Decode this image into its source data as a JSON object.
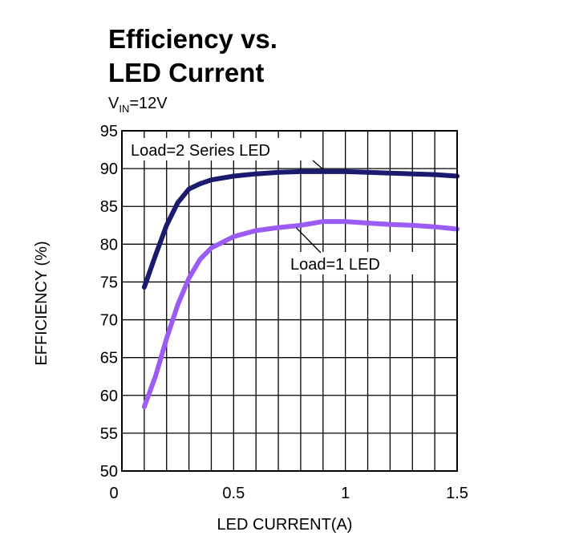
{
  "chart_data": {
    "type": "line",
    "title_line1": "Efficiency vs.",
    "title_line2": "LED Current",
    "condition": {
      "prefix": "V",
      "subscript": "IN",
      "suffix": "=12V"
    },
    "xlabel": "LED CURRENT(A)",
    "ylabel": "EFFICIENCY (%)",
    "xlim": [
      0,
      1.5
    ],
    "ylim": [
      50,
      95
    ],
    "xticks": [
      0,
      0.5,
      1,
      1.5
    ],
    "xtick_labels": [
      "0",
      "0.5",
      "1",
      "1.5"
    ],
    "yticks": [
      50,
      55,
      60,
      65,
      70,
      75,
      80,
      85,
      90,
      95
    ],
    "x_grid_step": 0.1,
    "grid": true,
    "series": [
      {
        "name": "Load=2 Series LED",
        "color": "#1a1a6e",
        "x": [
          0.1,
          0.15,
          0.2,
          0.25,
          0.3,
          0.35,
          0.4,
          0.5,
          0.6,
          0.7,
          0.8,
          0.9,
          1.0,
          1.1,
          1.2,
          1.3,
          1.4,
          1.5
        ],
        "y": [
          74.3,
          78.5,
          82.5,
          85.5,
          87.3,
          88.0,
          88.5,
          89.0,
          89.3,
          89.5,
          89.6,
          89.6,
          89.6,
          89.5,
          89.4,
          89.3,
          89.2,
          89.0
        ]
      },
      {
        "name": "Load=1 LED",
        "color": "#9b5cf5",
        "x": [
          0.1,
          0.15,
          0.2,
          0.25,
          0.3,
          0.35,
          0.4,
          0.5,
          0.6,
          0.7,
          0.8,
          0.9,
          1.0,
          1.1,
          1.2,
          1.3,
          1.4,
          1.5
        ],
        "y": [
          58.5,
          62.5,
          67.5,
          72.0,
          75.5,
          78.0,
          79.5,
          81.0,
          81.8,
          82.2,
          82.5,
          83.0,
          83.0,
          82.8,
          82.6,
          82.5,
          82.3,
          82.0
        ]
      }
    ]
  }
}
